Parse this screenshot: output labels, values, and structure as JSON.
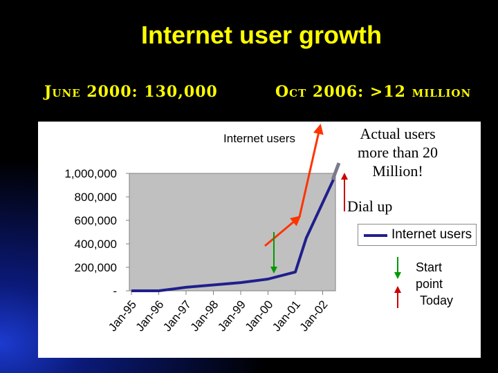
{
  "slide": {
    "title": "Internet user growth",
    "subtitle_left": "June 2000: 130,000",
    "subtitle_right": "Oct 2006: >12 million"
  },
  "annotations": {
    "actual_users": "Actual users more than 20 Million!",
    "dial_up": "Dial up",
    "start_point": "Start point",
    "today": "Today"
  },
  "colors": {
    "title": "#ffff00",
    "series_line": "#1f1f8c",
    "plot_area": "#c0c0c0",
    "trend_arrow": "#ff3300",
    "start_arrow": "#009900",
    "today_arrow": "#cc0000",
    "dialup_marker": "#7a7a8c"
  },
  "chart_data": {
    "type": "line",
    "title": "Internet users",
    "categories": [
      "Jan-95",
      "Jan-96",
      "Jan-97",
      "Jan-98",
      "Jan-99",
      "Jan-00",
      "Jan-01",
      "Jan-02"
    ],
    "series": [
      {
        "name": "Internet users",
        "x": [
          0,
          1,
          2,
          3,
          4,
          5,
          6,
          6.4,
          7.4
        ],
        "values": [
          0,
          0,
          30000,
          50000,
          70000,
          100000,
          160000,
          450000,
          950000
        ]
      }
    ],
    "y_tick_labels": [
      "-",
      "200,000",
      "400,000",
      "600,000",
      "800,000",
      "1,000,000"
    ],
    "ylim": [
      0,
      1000000
    ],
    "grid": false,
    "legend": "right"
  }
}
